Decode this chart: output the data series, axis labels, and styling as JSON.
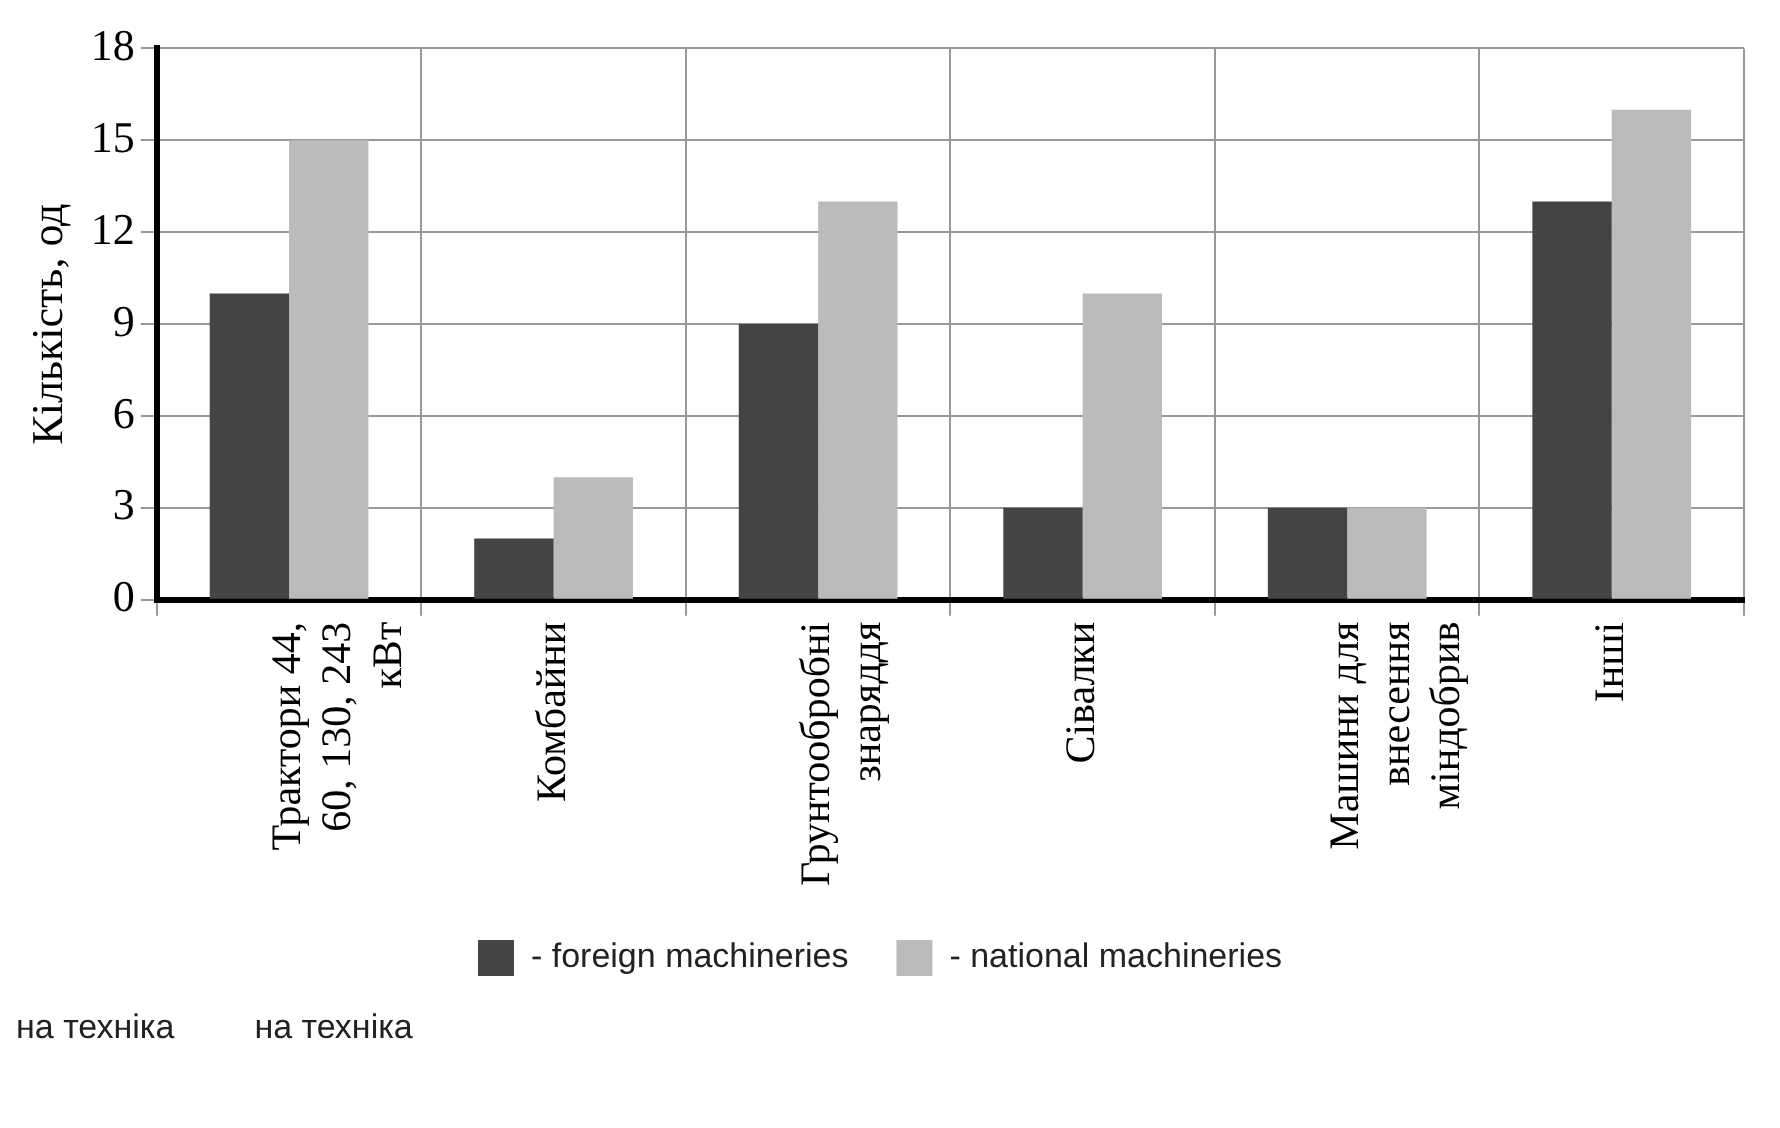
{
  "chart_data": {
    "type": "bar",
    "ylabel": "Кількість, од",
    "categories": [
      "Трактори 44, 60, 130, 243 кВт",
      "Комбайни",
      "Грунтообробні знаряддя",
      "Сівалки",
      "Машини для внесення міндобрив",
      "Інші"
    ],
    "series": [
      {
        "name": "- foreign machineries",
        "color": "#444444",
        "values": [
          10,
          2,
          9,
          3,
          3,
          13
        ]
      },
      {
        "name": "- national machineries",
        "color": "#bbbbbb",
        "values": [
          15,
          4,
          13,
          10,
          3,
          16
        ]
      }
    ],
    "ylim": [
      0,
      18
    ],
    "yticks": [
      0,
      3,
      6,
      9,
      12,
      15,
      18
    ],
    "grid": true,
    "legend": "bottom",
    "annotations": [
      "на техніка",
      "на техніка"
    ]
  }
}
